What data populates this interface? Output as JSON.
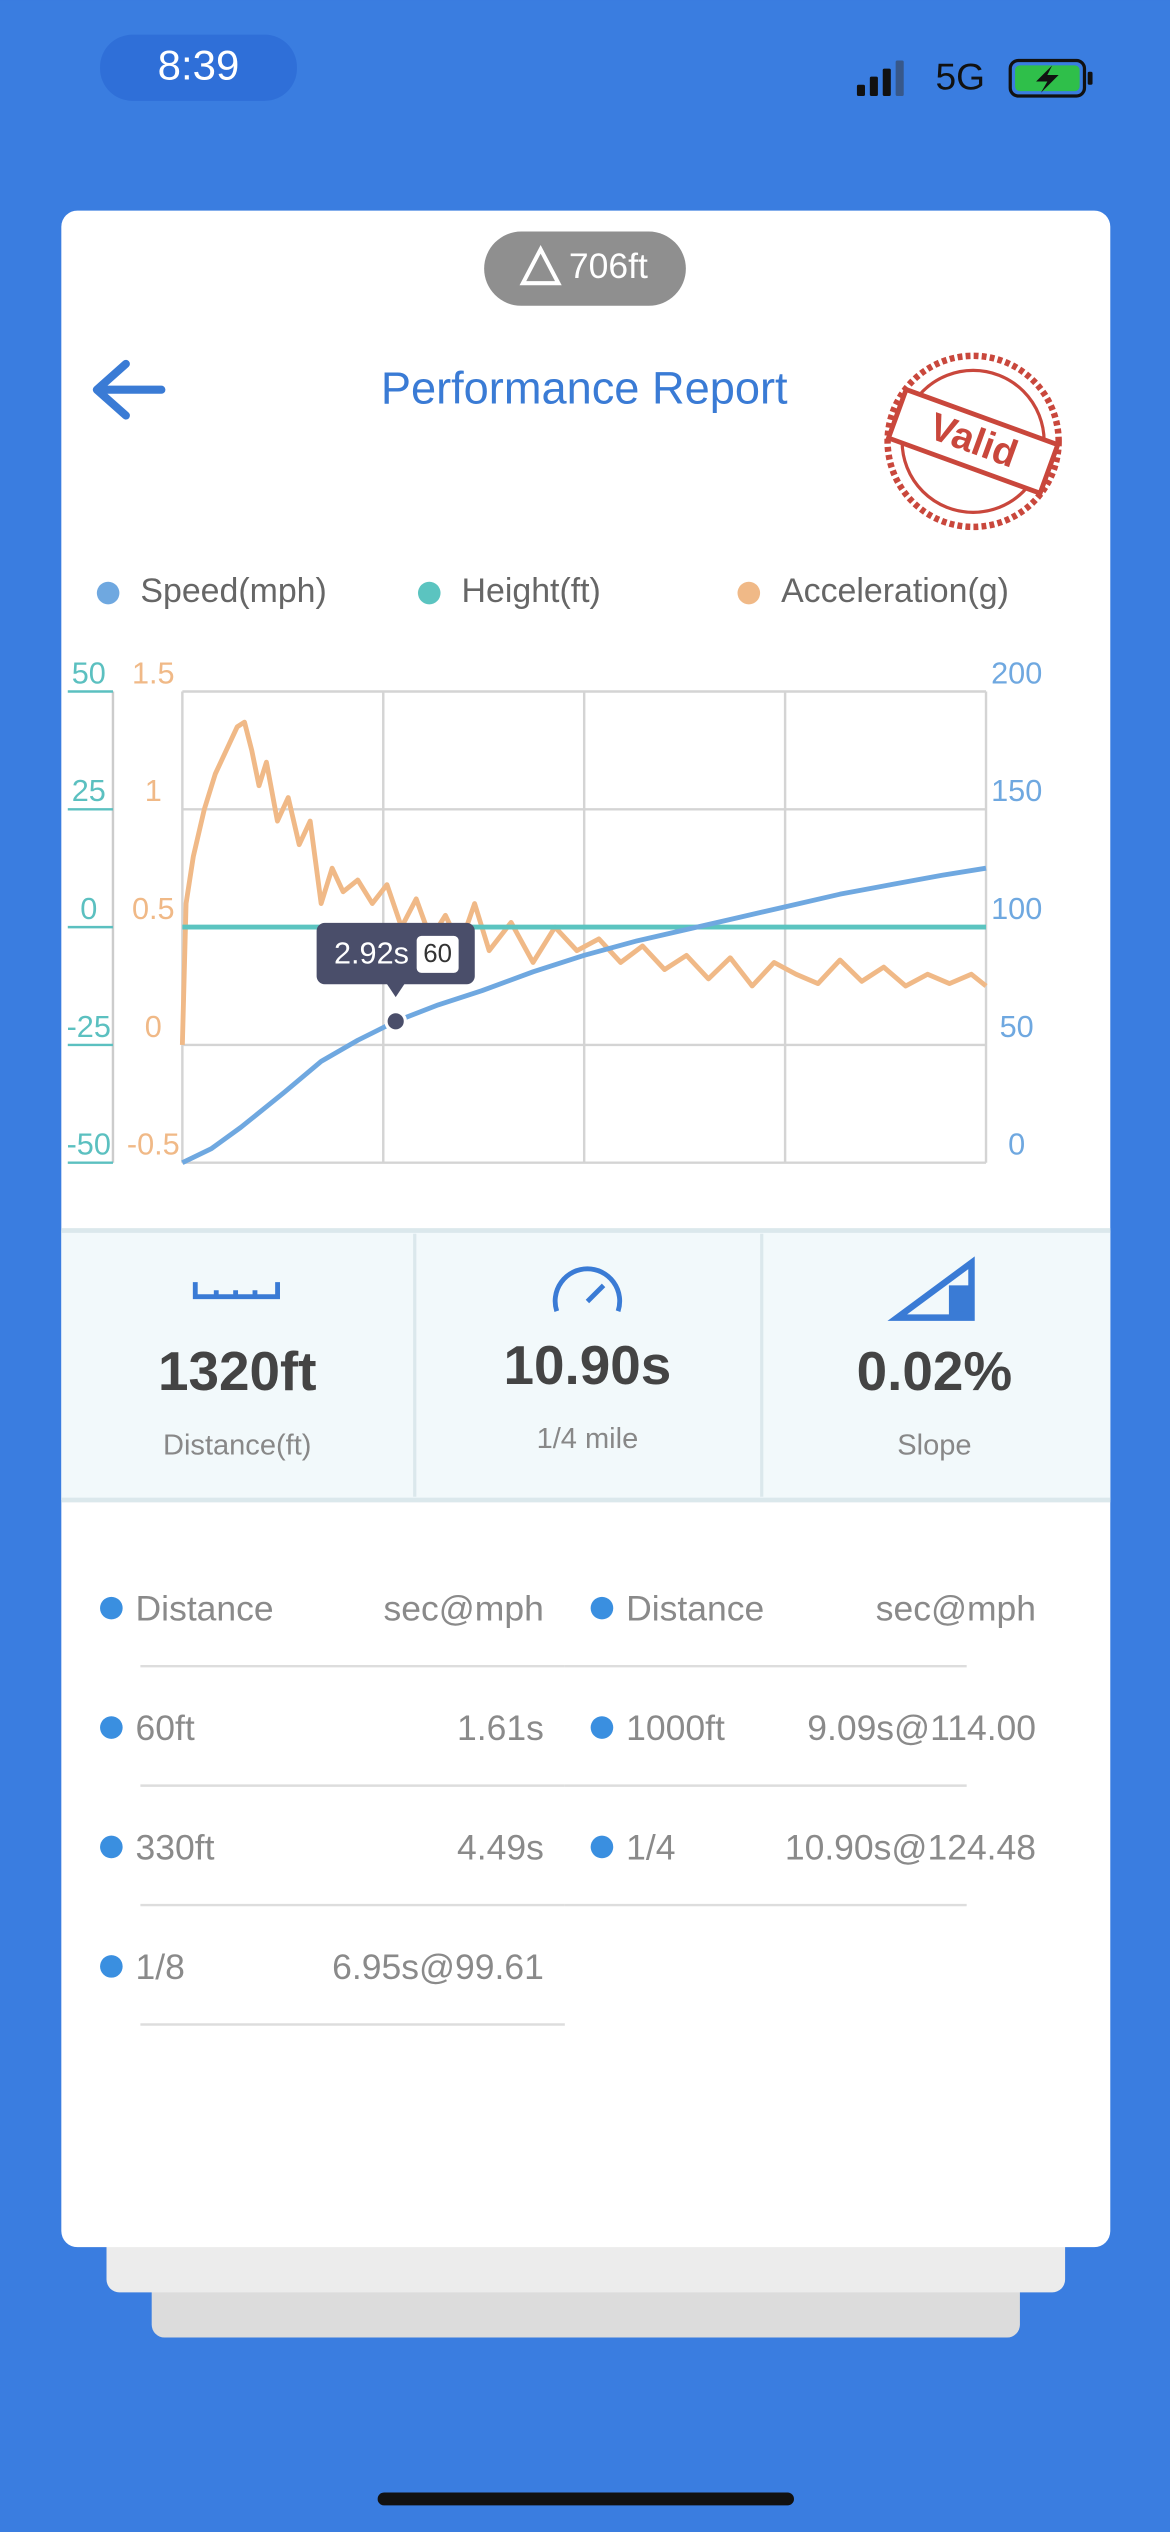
{
  "status_bar": {
    "time": "8:39",
    "network": "5G"
  },
  "header": {
    "altitude": "706ft",
    "title": "Performance Report",
    "stamp": "Valid"
  },
  "chart": {
    "type": "line",
    "xlim": [
      0,
      11
    ],
    "xticks": [
      0,
      2.75,
      5.5,
      8.25,
      11
    ],
    "ylim": [
      -50,
      50
    ],
    "yticks": [
      -50,
      -25,
      0,
      25,
      50
    ],
    "y2lim": [
      0,
      200
    ],
    "y2ticks": [
      0,
      50,
      100,
      150,
      200
    ],
    "y3lim": [
      -0.5,
      1.5
    ],
    "y3ticks": [
      -0.5,
      0,
      0.5,
      1,
      1.5
    ],
    "grid": true,
    "series": [
      {
        "name": "Speed(mph)",
        "color": "#6fa8e0",
        "axis": "y2",
        "x": [
          0,
          0.4,
          0.8,
          1.4,
          1.9,
          2.4,
          2.92,
          3.5,
          4.1,
          4.8,
          5.5,
          6.2,
          6.9,
          7.6,
          8.3,
          9.0,
          9.7,
          10.4,
          11
        ],
        "values": [
          0,
          6,
          15,
          30,
          43,
          52,
          60,
          67,
          73,
          81,
          88,
          94,
          99,
          104,
          109,
          114,
          118,
          122,
          125
        ]
      },
      {
        "name": "Height(ft)",
        "color": "#5bc4c0",
        "axis": "y",
        "x": [
          0,
          11
        ],
        "values": [
          0,
          0
        ]
      },
      {
        "name": "Acceleration(g)",
        "color": "#f0b987",
        "axis": "y3",
        "x": [
          0,
          0.05,
          0.15,
          0.3,
          0.45,
          0.6,
          0.75,
          0.85,
          0.95,
          1.05,
          1.15,
          1.3,
          1.45,
          1.6,
          1.75,
          1.9,
          2.05,
          2.2,
          2.4,
          2.6,
          2.8,
          3.0,
          3.2,
          3.4,
          3.6,
          3.8,
          4.0,
          4.2,
          4.5,
          4.8,
          5.1,
          5.4,
          5.7,
          6.0,
          6.3,
          6.6,
          6.9,
          7.2,
          7.5,
          7.8,
          8.1,
          8.4,
          8.7,
          9.0,
          9.3,
          9.6,
          9.9,
          10.2,
          10.5,
          10.8,
          11
        ],
        "values": [
          0.0,
          0.6,
          0.8,
          1.0,
          1.15,
          1.25,
          1.35,
          1.37,
          1.25,
          1.1,
          1.2,
          0.95,
          1.05,
          0.85,
          0.95,
          0.6,
          0.75,
          0.65,
          0.7,
          0.6,
          0.68,
          0.5,
          0.62,
          0.45,
          0.55,
          0.42,
          0.6,
          0.4,
          0.52,
          0.35,
          0.5,
          0.4,
          0.45,
          0.35,
          0.42,
          0.32,
          0.38,
          0.28,
          0.37,
          0.25,
          0.35,
          0.3,
          0.26,
          0.36,
          0.27,
          0.33,
          0.25,
          0.3,
          0.26,
          0.3,
          0.25
        ]
      }
    ],
    "tooltip": {
      "x": 2.92,
      "x_label": "2.92s",
      "value": 60
    }
  },
  "stats": [
    {
      "value": "1320ft",
      "label": "Distance(ft)"
    },
    {
      "value": "10.90s",
      "label": "1/4 mile"
    },
    {
      "value": "0.02%",
      "label": "Slope"
    }
  ],
  "table": {
    "header": [
      "Distance",
      "sec@mph",
      "Distance",
      "sec@mph"
    ],
    "rows": [
      [
        "60ft",
        "1.61s",
        "1000ft",
        "9.09s@114.00"
      ],
      [
        "330ft",
        "4.49s",
        "1/4",
        "10.90s@124.48"
      ],
      [
        "1/8",
        "6.95s@99.61"
      ]
    ]
  }
}
